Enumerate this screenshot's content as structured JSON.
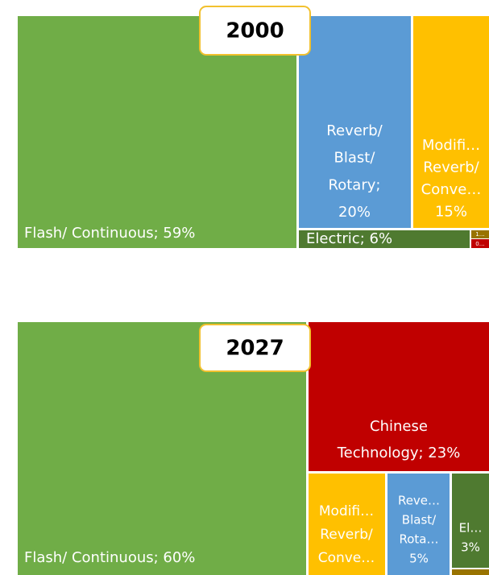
{
  "chart_data": [
    {
      "type": "treemap",
      "title": "2000",
      "tiles": [
        {
          "label": [
            "Flash/ Continuous; 59%"
          ],
          "value": 59,
          "color": "#70ad47"
        },
        {
          "label": [
            "Reverb/",
            "Blast/",
            "Rotary;",
            "20%"
          ],
          "value": 20,
          "color": "#5b9bd5"
        },
        {
          "label": [
            "Modifi…",
            "Reverb/",
            "Conve…",
            "15%"
          ],
          "value": 15,
          "color": "#ffc000"
        },
        {
          "label": [
            "Electric; 6%"
          ],
          "value": 6,
          "color": "#4f7a30"
        },
        {
          "label": [
            "1…"
          ],
          "value": 1,
          "color": "#997300"
        },
        {
          "label": [
            "0…"
          ],
          "value": 0.5,
          "color": "#c00000"
        }
      ]
    },
    {
      "type": "treemap",
      "title": "2027",
      "tiles": [
        {
          "label": [
            "Flash/ Continuous; 60%"
          ],
          "value": 60,
          "color": "#70ad47"
        },
        {
          "label": [
            "Chinese",
            "Technology; 23%"
          ],
          "value": 23,
          "color": "#c00000"
        },
        {
          "label": [
            "Modifi…",
            "Reverb/",
            "Conve…"
          ],
          "value": 8,
          "color": "#ffc000"
        },
        {
          "label": [
            "Reve…",
            "Blast/",
            "Rota…",
            "5%"
          ],
          "value": 5,
          "color": "#5b9bd5"
        },
        {
          "label": [
            "El…",
            "3%"
          ],
          "value": 3,
          "color": "#4f7a30"
        },
        {
          "label": null,
          "value": 1,
          "color": "#997300"
        }
      ]
    }
  ]
}
